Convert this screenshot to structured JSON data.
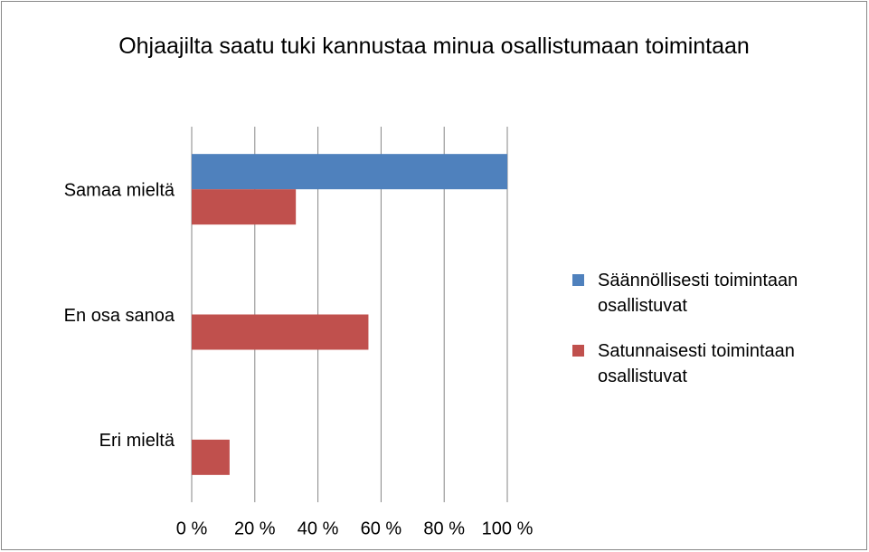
{
  "chart_data": {
    "type": "bar",
    "orientation": "horizontal",
    "title": "Ohjaajilta saatu tuki kannustaa minua osallistumaan toimintaan",
    "categories": [
      "Samaa mieltä",
      "En osa sanoa",
      "Eri mieltä"
    ],
    "series": [
      {
        "name": "Säännöllisesti toimintaan osallistuvat",
        "color": "#4f81bd",
        "values": [
          100,
          0,
          0
        ]
      },
      {
        "name": "Satunnaisesti toimintaan osallistuvat",
        "color": "#c0504d",
        "values": [
          33,
          56,
          12
        ]
      }
    ],
    "xlim": [
      0,
      100
    ],
    "xticks": [
      {
        "value": 0,
        "label": "0 %"
      },
      {
        "value": 20,
        "label": "20 %"
      },
      {
        "value": 40,
        "label": "40 %"
      },
      {
        "value": 60,
        "label": "60 %"
      },
      {
        "value": 80,
        "label": "80 %"
      },
      {
        "value": 100,
        "label": "100 %"
      }
    ],
    "grid": true,
    "legend": "right"
  }
}
